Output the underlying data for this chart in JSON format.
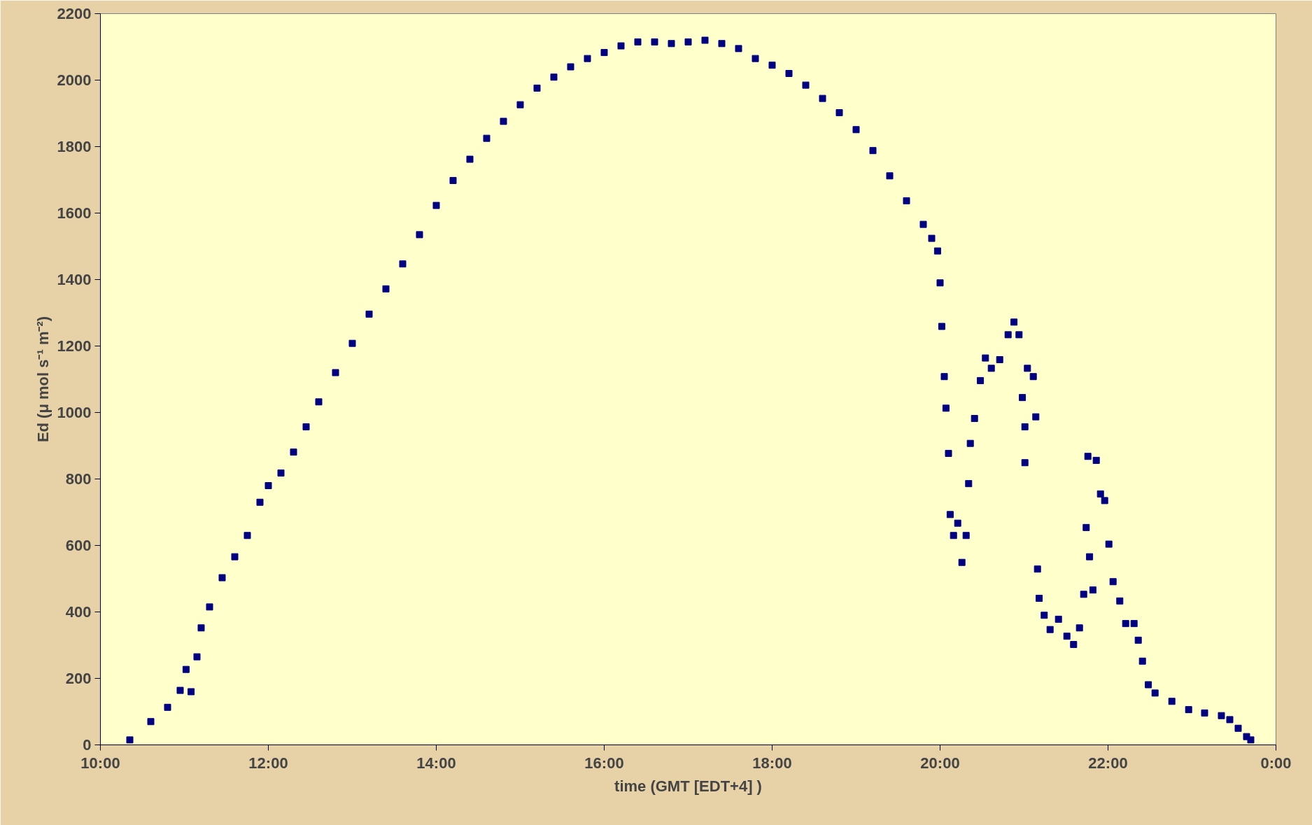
{
  "chart_data": {
    "type": "scatter",
    "xlabel": "time (GMT [EDT+4] )",
    "ylabel": "Ed (μ mol s⁻¹ m⁻²)",
    "x": [
      10.35,
      10.6,
      10.8,
      10.95,
      11.08,
      11.02,
      11.15,
      11.2,
      11.3,
      11.45,
      11.6,
      11.75,
      11.9,
      12.0,
      12.15,
      12.3,
      12.45,
      12.6,
      12.8,
      13.0,
      13.2,
      13.4,
      13.6,
      13.8,
      14.0,
      14.2,
      14.4,
      14.6,
      14.8,
      15.0,
      15.2,
      15.4,
      15.6,
      15.8,
      16.0,
      16.2,
      16.4,
      16.6,
      16.8,
      17.0,
      17.2,
      17.4,
      17.6,
      17.8,
      18.0,
      18.2,
      18.4,
      18.6,
      18.8,
      19.0,
      19.2,
      19.4,
      19.6,
      19.8,
      19.9,
      19.97,
      20.0,
      20.02,
      20.05,
      20.07,
      20.1,
      20.12,
      20.16,
      20.21,
      20.26,
      20.31,
      20.34,
      20.36,
      20.41,
      20.48,
      20.54,
      20.61,
      20.71,
      20.81,
      20.88,
      20.94,
      20.98,
      21.01,
      21.01,
      21.04,
      21.11,
      21.14,
      21.16,
      21.18,
      21.24,
      21.31,
      21.41,
      21.51,
      21.59,
      21.66,
      21.71,
      21.74,
      21.78,
      21.76,
      21.82,
      21.86,
      21.91,
      21.96,
      22.01,
      22.06,
      22.14,
      22.21,
      22.31,
      22.36,
      22.41,
      22.48,
      22.56,
      22.76,
      22.96,
      23.15,
      23.35,
      23.45,
      23.55,
      23.65,
      23.7
    ],
    "values": [
      15,
      70,
      113,
      164,
      160,
      227,
      265,
      352,
      415,
      503,
      566,
      630,
      730,
      780,
      818,
      881,
      957,
      1032,
      1120,
      1208,
      1296,
      1372,
      1447,
      1535,
      1623,
      1698,
      1762,
      1825,
      1876,
      1926,
      1976,
      2009,
      2040,
      2065,
      2083,
      2103,
      2115,
      2115,
      2110,
      2115,
      2120,
      2110,
      2095,
      2065,
      2045,
      2020,
      1985,
      1945,
      1902,
      1851,
      1788,
      1712,
      1637,
      1566,
      1524,
      1486,
      1390,
      1259,
      1108,
      1013,
      877,
      693,
      630,
      667,
      549,
      630,
      786,
      907,
      982,
      1096,
      1164,
      1133,
      1159,
      1234,
      1272,
      1234,
      1045,
      957,
      849,
      1133,
      1108,
      987,
      529,
      441,
      390,
      347,
      378,
      327,
      302,
      352,
      453,
      654,
      566,
      868,
      466,
      856,
      755,
      735,
      604,
      491,
      433,
      365,
      365,
      315,
      252,
      181,
      156,
      131,
      106,
      96,
      88,
      76,
      50,
      25,
      15
    ],
    "color": "#000080",
    "marker": "square",
    "grid": false,
    "xlim": [
      10,
      24
    ],
    "ylim": [
      0,
      2200
    ],
    "xticks": [
      {
        "value": 10,
        "label": "10:00"
      },
      {
        "value": 12,
        "label": "12:00"
      },
      {
        "value": 14,
        "label": "14:00"
      },
      {
        "value": 16,
        "label": "16:00"
      },
      {
        "value": 18,
        "label": "18:00"
      },
      {
        "value": 20,
        "label": "20:00"
      },
      {
        "value": 22,
        "label": "22:00"
      },
      {
        "value": 24,
        "label": "0:00"
      }
    ],
    "yticks": [
      0,
      200,
      400,
      600,
      800,
      1000,
      1200,
      1400,
      1600,
      1800,
      2000,
      2200
    ]
  }
}
